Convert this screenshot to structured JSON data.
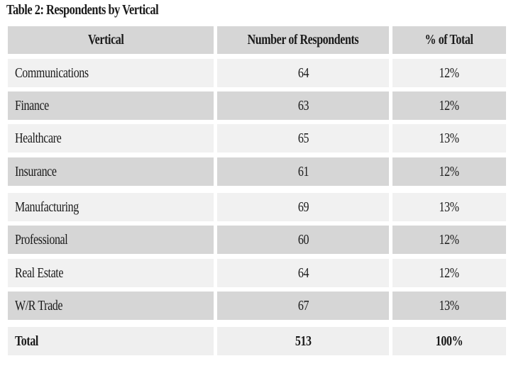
{
  "table": {
    "title": "Table 2:   Respondents by Vertical",
    "headers": [
      "Vertical",
      "Number of Respondents",
      "% of Total"
    ],
    "rows": [
      {
        "vertical": "Communications",
        "respondents": "64",
        "percent": "12%"
      },
      {
        "vertical": "Finance",
        "respondents": "63",
        "percent": "12%"
      },
      {
        "vertical": "Healthcare",
        "respondents": "65",
        "percent": "13%"
      },
      {
        "vertical": "Insurance",
        "respondents": "61",
        "percent": "12%"
      },
      {
        "vertical": "Manufacturing",
        "respondents": "69",
        "percent": "13%"
      },
      {
        "vertical": "Professional",
        "respondents": "60",
        "percent": "12%"
      },
      {
        "vertical": "Real Estate",
        "respondents": "64",
        "percent": "12%"
      },
      {
        "vertical": "W/R Trade",
        "respondents": "67",
        "percent": "13%"
      }
    ],
    "total": {
      "vertical": "Total",
      "respondents": "513",
      "percent": "100%"
    }
  },
  "colors": {
    "header_bg": "#d6d6d6",
    "light_row_bg": "#f1f1f1",
    "dark_row_bg": "#d6d6d6",
    "text": "#1a1a1a"
  }
}
